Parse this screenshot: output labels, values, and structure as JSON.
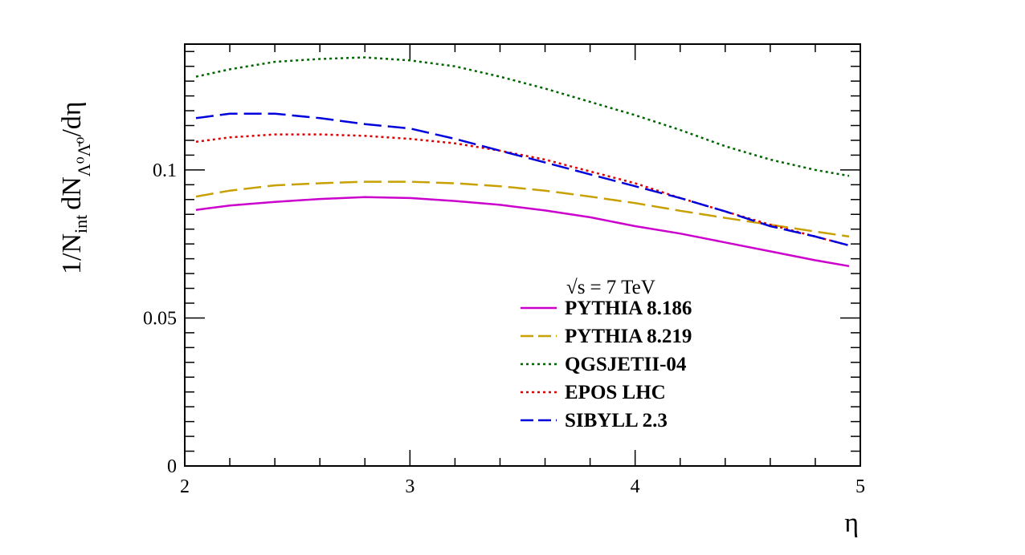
{
  "chart_data": {
    "type": "line",
    "title": "",
    "xlabel": "η",
    "ylabel": {
      "main": "1/N",
      "main_sub": "int",
      "dn": "dN",
      "dn_sub": "Λ⁰Λ̄⁰",
      "tail": "/dη"
    },
    "xlim": [
      2,
      5
    ],
    "ylim": [
      0,
      0.1425
    ],
    "x_ticks": [
      "2",
      "3",
      "4",
      "5"
    ],
    "y_ticks": [
      "0",
      "0.05",
      "0.1"
    ],
    "legend": {
      "placement": "bottom-center",
      "header_root": "√s",
      "header_text": "= 7 TeV"
    },
    "grid": false,
    "x": [
      2.05,
      2.2,
      2.4,
      2.6,
      2.8,
      3.0,
      3.2,
      3.4,
      3.6,
      3.8,
      4.0,
      4.2,
      4.4,
      4.6,
      4.8,
      4.95
    ],
    "series": [
      {
        "name": "PYTHIA 8.186",
        "color": "#cc00cc",
        "dash": "solid",
        "values": [
          0.0865,
          0.088,
          0.0892,
          0.0902,
          0.0908,
          0.0905,
          0.0895,
          0.0882,
          0.0863,
          0.084,
          0.081,
          0.0785,
          0.0755,
          0.0725,
          0.0695,
          0.0675
        ]
      },
      {
        "name": "PYTHIA 8.219",
        "color": "#c8a000",
        "dash": "longdash",
        "values": [
          0.091,
          0.093,
          0.0948,
          0.0955,
          0.096,
          0.096,
          0.0955,
          0.0945,
          0.093,
          0.091,
          0.0888,
          0.0862,
          0.0838,
          0.0815,
          0.0792,
          0.0775
        ]
      },
      {
        "name": "QGSJETII-04",
        "color": "#006400",
        "dash": "dotted",
        "values": [
          0.1315,
          0.134,
          0.1365,
          0.1375,
          0.138,
          0.137,
          0.135,
          0.1315,
          0.1275,
          0.123,
          0.1185,
          0.1135,
          0.108,
          0.1035,
          0.1,
          0.098
        ]
      },
      {
        "name": "EPOS LHC",
        "color": "#dd0000",
        "dash": "dotted",
        "values": [
          0.1095,
          0.111,
          0.112,
          0.112,
          0.1115,
          0.1105,
          0.109,
          0.1065,
          0.1035,
          0.0995,
          0.0955,
          0.0905,
          0.086,
          0.0815,
          0.0775,
          0.0745
        ]
      },
      {
        "name": "SIBYLL 2.3",
        "color": "#0000dd",
        "dash": "longdash",
        "values": [
          0.1175,
          0.119,
          0.119,
          0.1175,
          0.1155,
          0.114,
          0.1105,
          0.1065,
          0.1025,
          0.0985,
          0.0945,
          0.0905,
          0.086,
          0.081,
          0.0775,
          0.0745
        ]
      }
    ]
  }
}
